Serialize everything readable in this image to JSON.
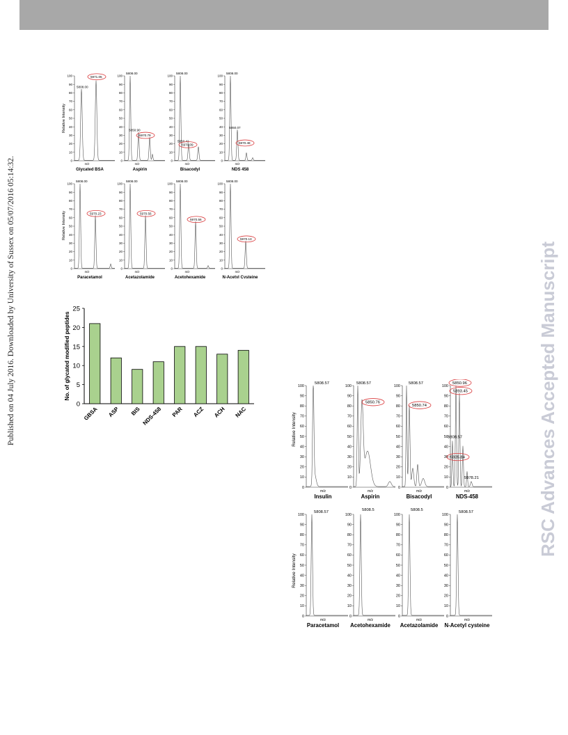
{
  "side_note": "Published on 04 July 2016. Downloaded by University of Sussex on 05/07/2016 05:14:32.",
  "watermark": "RSC Advances Accepted Manuscript",
  "figure_a": {
    "ylabel": "Relative Intensity",
    "xlabel": "m/z",
    "yticks": [
      "0",
      "10",
      "20",
      "30",
      "40",
      "50",
      "60",
      "70",
      "80",
      "90",
      "100"
    ],
    "panels": [
      {
        "name": "Glycated BSA",
        "labels": [
          {
            "text": "5808.00",
            "circled": false
          },
          {
            "text": "5971.05",
            "circled": true
          }
        ]
      },
      {
        "name": "Aspirin",
        "labels": [
          {
            "text": "5808.00",
            "circled": false
          },
          {
            "text": "5850.90",
            "circled": false
          },
          {
            "text": "5970.79",
            "circled": true
          }
        ]
      },
      {
        "name": "Bisacodyl",
        "labels": [
          {
            "text": "5808.00",
            "circled": false
          },
          {
            "text": "5850.41",
            "circled": false
          },
          {
            "text": "5970.09",
            "circled": true
          }
        ]
      },
      {
        "name": "NDS 458",
        "labels": [
          {
            "text": "5808.00",
            "circled": false
          },
          {
            "text": "5850.07",
            "circled": false
          },
          {
            "text": "5970.48",
            "circled": true
          }
        ]
      },
      {
        "name": "Paracetamol",
        "labels": [
          {
            "text": "5808.00",
            "circled": false
          },
          {
            "text": "5970.23",
            "circled": true
          }
        ]
      },
      {
        "name": "Acetazolamide",
        "labels": [
          {
            "text": "5808.00",
            "circled": false
          },
          {
            "text": "5970.56",
            "circled": true
          }
        ]
      },
      {
        "name": "Acetohexamide",
        "labels": [
          {
            "text": "5808.00",
            "circled": false
          },
          {
            "text": "5970.56",
            "circled": true
          }
        ]
      },
      {
        "name": "N-Acetyl Cysteine",
        "labels": [
          {
            "text": "5808.00",
            "circled": false
          },
          {
            "text": "5970.13",
            "circled": true
          }
        ]
      }
    ]
  },
  "chart_data": {
    "type": "bar",
    "ylabel": "No. of glycated modified peptides",
    "xlabel": "",
    "categories": [
      "GBSA",
      "ASP",
      "BIS",
      "NDS-458",
      "PAR",
      "ACZ",
      "ACH",
      "NAC"
    ],
    "values": [
      21,
      12,
      9,
      11,
      15,
      15,
      13,
      14
    ],
    "ylim": [
      0,
      25
    ],
    "yticks": [
      "0",
      "5",
      "10",
      "15",
      "20",
      "25"
    ],
    "bar_color": "#a9d18e",
    "grid": false
  },
  "figure_c": {
    "ylabel": "Relative Intensity",
    "xlabel": "m/z",
    "yticks": [
      "0",
      "10",
      "20",
      "30",
      "40",
      "50",
      "60",
      "70",
      "80",
      "90",
      "100"
    ],
    "panels": [
      {
        "name": "Insulin",
        "labels": [
          {
            "text": "5808.57",
            "circled": false
          }
        ]
      },
      {
        "name": "Aspirin",
        "labels": [
          {
            "text": "5808.57",
            "circled": false
          },
          {
            "text": "5850.76",
            "circled": true
          }
        ]
      },
      {
        "name": "Bisacodyl",
        "labels": [
          {
            "text": "5808.57",
            "circled": false
          },
          {
            "text": "5850.74",
            "circled": true
          }
        ]
      },
      {
        "name": "NDS-458",
        "labels": [
          {
            "text": "5850.96",
            "circled": true
          },
          {
            "text": "5893.45",
            "circled": true
          },
          {
            "text": "5808.57",
            "circled": false
          },
          {
            "text": "5935.84",
            "circled": true
          },
          {
            "text": "5978.21",
            "circled": false
          }
        ]
      },
      {
        "name": "Paracetamol",
        "labels": [
          {
            "text": "5808.57",
            "circled": false
          }
        ]
      },
      {
        "name": "Acetohexamide",
        "labels": [
          {
            "text": "5808.5",
            "circled": false
          }
        ]
      },
      {
        "name": "Acetazolamide",
        "labels": [
          {
            "text": "5808.5",
            "circled": false
          }
        ]
      },
      {
        "name": "N-Acetyl cysteine",
        "labels": [
          {
            "text": "5808.57",
            "circled": false
          }
        ]
      }
    ]
  }
}
